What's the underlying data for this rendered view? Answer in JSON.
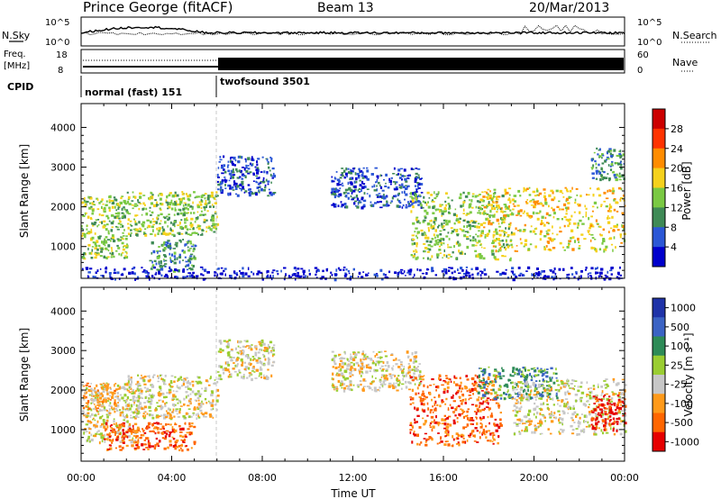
{
  "header": {
    "station": "Prince George (fitACF)",
    "beam": "Beam 13",
    "date": "20/Mar/2013"
  },
  "strip_labels": {
    "nsky": "N.Sky",
    "nsky_ticks": [
      "10^5",
      "10^0"
    ],
    "nsearch": "N.Search",
    "nsearch_ticks": [
      "10^5",
      "10^0"
    ],
    "freq_line1": "Freq.",
    "freq_line2": "[MHz]",
    "freq_ticks": [
      "18",
      "8"
    ],
    "nave": "Nave",
    "nave_ticks": [
      "60",
      "0"
    ],
    "cpid": "CPID",
    "mode1": "normal (fast) 151",
    "mode2": "twofsound 3501"
  },
  "colors": {
    "power": [
      "#0000cc",
      "#2b57d6",
      "#3f8a56",
      "#7ac943",
      "#f5d11c",
      "#ff8c00",
      "#ff3300",
      "#cc0000"
    ],
    "velocity": [
      "#e60000",
      "#ff6600",
      "#ff9a1a",
      "#c7c7c7",
      "#9acd32",
      "#2e8b57",
      "#3b63c4",
      "#1f33a8"
    ]
  },
  "chart_data": [
    {
      "type": "heatmap",
      "name": "power",
      "xlabel": "",
      "ylabel": "Slant Range [km]",
      "yticks": [
        "1000",
        "2000",
        "3000",
        "4000"
      ],
      "ylim": [
        200,
        4600
      ],
      "xlim": [
        0,
        24
      ],
      "colorbar_label": "Power [dB]",
      "colorbar_ticks": [
        "4",
        "8",
        "12",
        "16",
        "20",
        "24",
        "28"
      ],
      "regions": [
        {
          "t0": 0.0,
          "t1": 2.0,
          "r0": 700,
          "r1": 2300,
          "level": 3
        },
        {
          "t0": 2.0,
          "t1": 6.0,
          "r0": 1300,
          "r1": 2400,
          "level": 3
        },
        {
          "t0": 3.0,
          "t1": 5.0,
          "r0": 400,
          "r1": 1200,
          "level": 2
        },
        {
          "t0": 6.0,
          "t1": 8.5,
          "r0": 2300,
          "r1": 3300,
          "level": 1
        },
        {
          "t0": 11.0,
          "t1": 15.0,
          "r0": 2000,
          "r1": 3000,
          "level": 1
        },
        {
          "t0": 14.5,
          "t1": 19.0,
          "r0": 700,
          "r1": 2400,
          "level": 3
        },
        {
          "t0": 17.5,
          "t1": 24.0,
          "r0": 900,
          "r1": 2500,
          "level": 4
        },
        {
          "t0": 22.5,
          "t1": 24.0,
          "r0": 2700,
          "r1": 3500,
          "level": 2
        },
        {
          "t0": 0.0,
          "t1": 24.0,
          "r0": 200,
          "r1": 500,
          "level": 0
        }
      ]
    },
    {
      "type": "heatmap",
      "name": "velocity",
      "xlabel": "Time UT",
      "ylabel": "Slant Range [km]",
      "xticks": [
        "00:00",
        "04:00",
        "08:00",
        "12:00",
        "16:00",
        "20:00",
        "00:00"
      ],
      "yticks": [
        "1000",
        "2000",
        "3000",
        "4000"
      ],
      "ylim": [
        200,
        4600
      ],
      "xlim": [
        0,
        24
      ],
      "colorbar_label": "Velocity [m s⁻¹]",
      "colorbar_ticks": [
        "1000",
        "500",
        "100",
        "25",
        "-25",
        "-100",
        "-500",
        "-1000"
      ],
      "regions": [
        {
          "t0": 0.0,
          "t1": 2.5,
          "r0": 700,
          "r1": 2200,
          "level": 3
        },
        {
          "t0": 0.0,
          "t1": 1.5,
          "r0": 1500,
          "r1": 2200,
          "level": 2
        },
        {
          "t0": 2.0,
          "t1": 6.0,
          "r0": 1300,
          "r1": 2400,
          "level": 3
        },
        {
          "t0": 1.0,
          "t1": 5.0,
          "r0": 500,
          "r1": 1200,
          "level": 1
        },
        {
          "t0": 6.0,
          "t1": 8.5,
          "r0": 2300,
          "r1": 3300,
          "level": 3
        },
        {
          "t0": 11.0,
          "t1": 15.0,
          "r0": 2000,
          "r1": 3000,
          "level": 3
        },
        {
          "t0": 14.5,
          "t1": 18.5,
          "r0": 600,
          "r1": 2400,
          "level": 1
        },
        {
          "t0": 17.5,
          "t1": 21.0,
          "r0": 1800,
          "r1": 2600,
          "level": 5
        },
        {
          "t0": 19.0,
          "t1": 24.0,
          "r0": 900,
          "r1": 2300,
          "level": 3
        },
        {
          "t0": 22.5,
          "t1": 24.0,
          "r0": 1000,
          "r1": 1900,
          "level": 0
        }
      ]
    }
  ]
}
